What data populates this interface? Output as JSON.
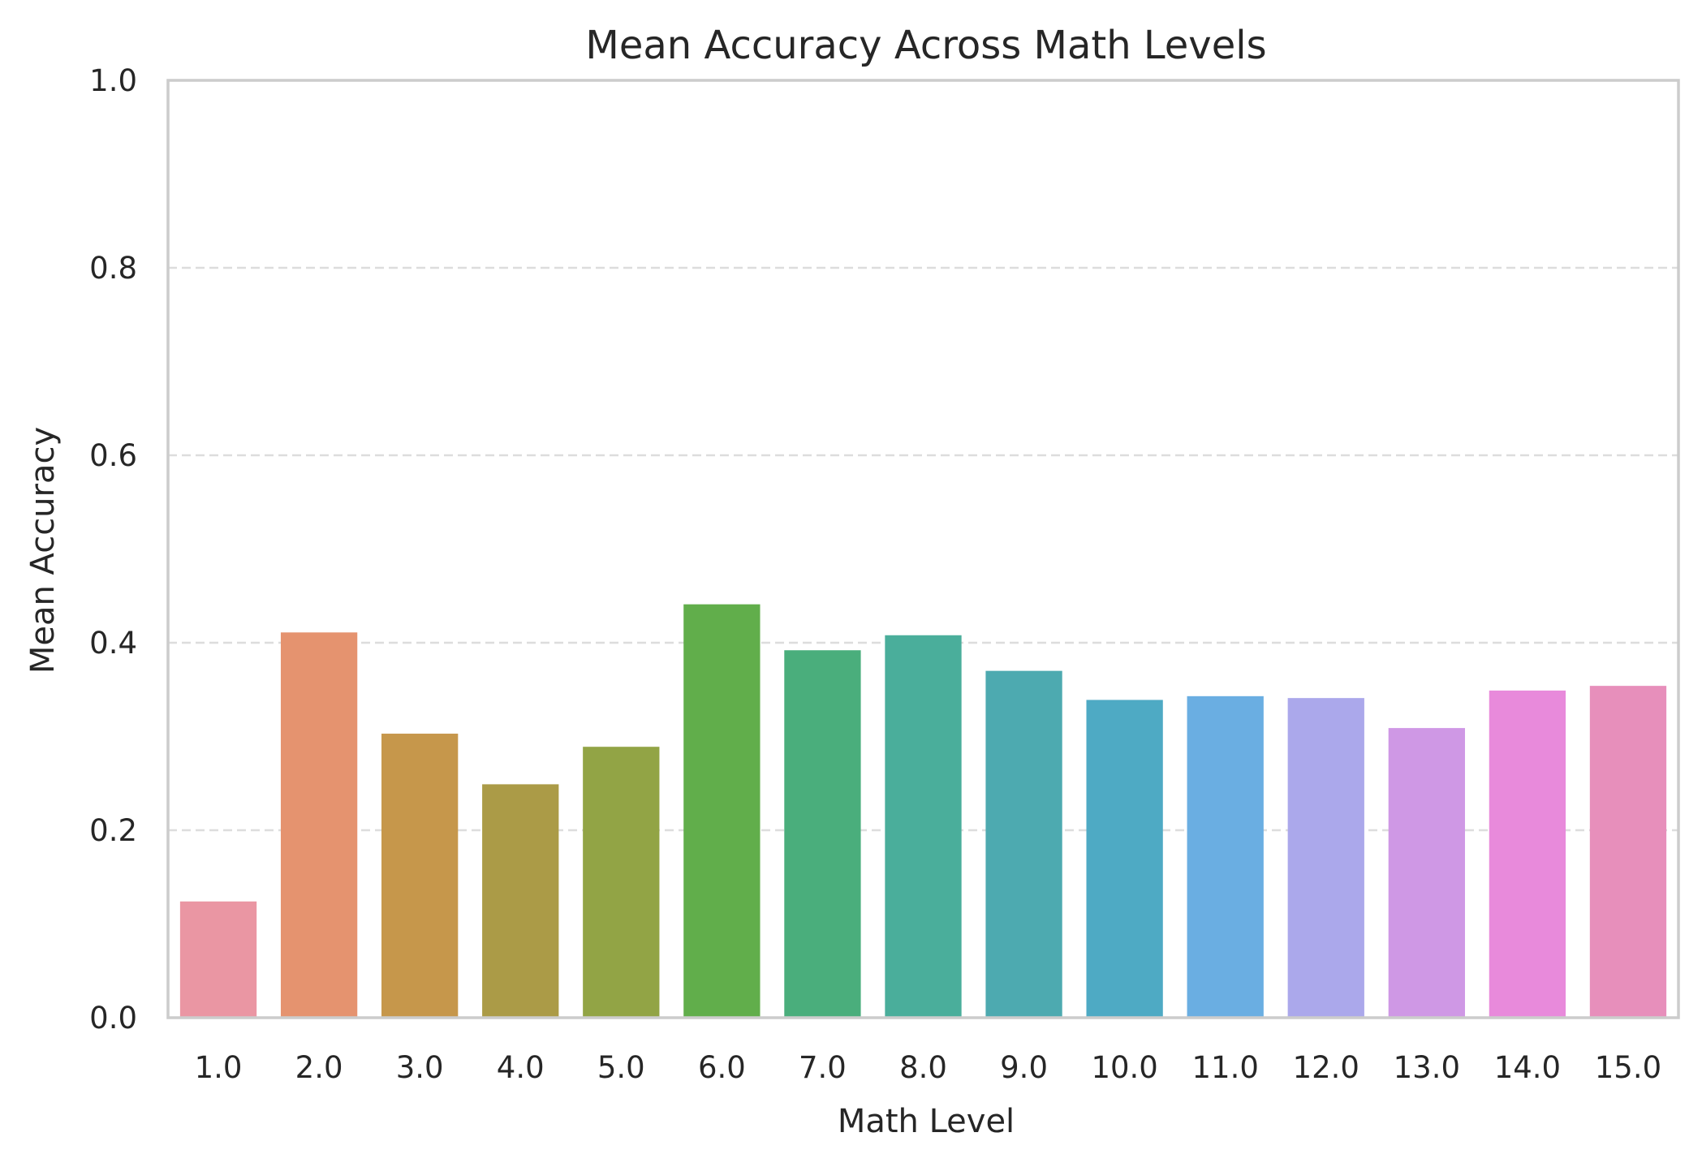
{
  "chart_data": {
    "type": "bar",
    "title": "Mean Accuracy Across Math Levels",
    "xlabel": "Math Level",
    "ylabel": "Mean Accuracy",
    "ylim": [
      0,
      1.0
    ],
    "y_ticks": [
      "0.0",
      "0.2",
      "0.4",
      "0.6",
      "0.8",
      "1.0"
    ],
    "grid": "horizontal dashed",
    "legend": "none",
    "categories": [
      "1.0",
      "2.0",
      "3.0",
      "4.0",
      "5.0",
      "6.0",
      "7.0",
      "8.0",
      "9.0",
      "10.0",
      "11.0",
      "12.0",
      "13.0",
      "14.0",
      "15.0"
    ],
    "values": [
      0.124,
      0.411,
      0.303,
      0.249,
      0.289,
      0.441,
      0.392,
      0.408,
      0.37,
      0.339,
      0.343,
      0.341,
      0.309,
      0.349,
      0.354
    ],
    "colors": [
      "#ea96a3",
      "#e5936f",
      "#c6974b",
      "#ab9b47",
      "#92a445",
      "#61ae4b",
      "#4aae7c",
      "#4aae9b",
      "#4daab0",
      "#4eaac4",
      "#6aaee2",
      "#aba8eb",
      "#cf98e5",
      "#e88adb",
      "#e78fbb"
    ]
  }
}
